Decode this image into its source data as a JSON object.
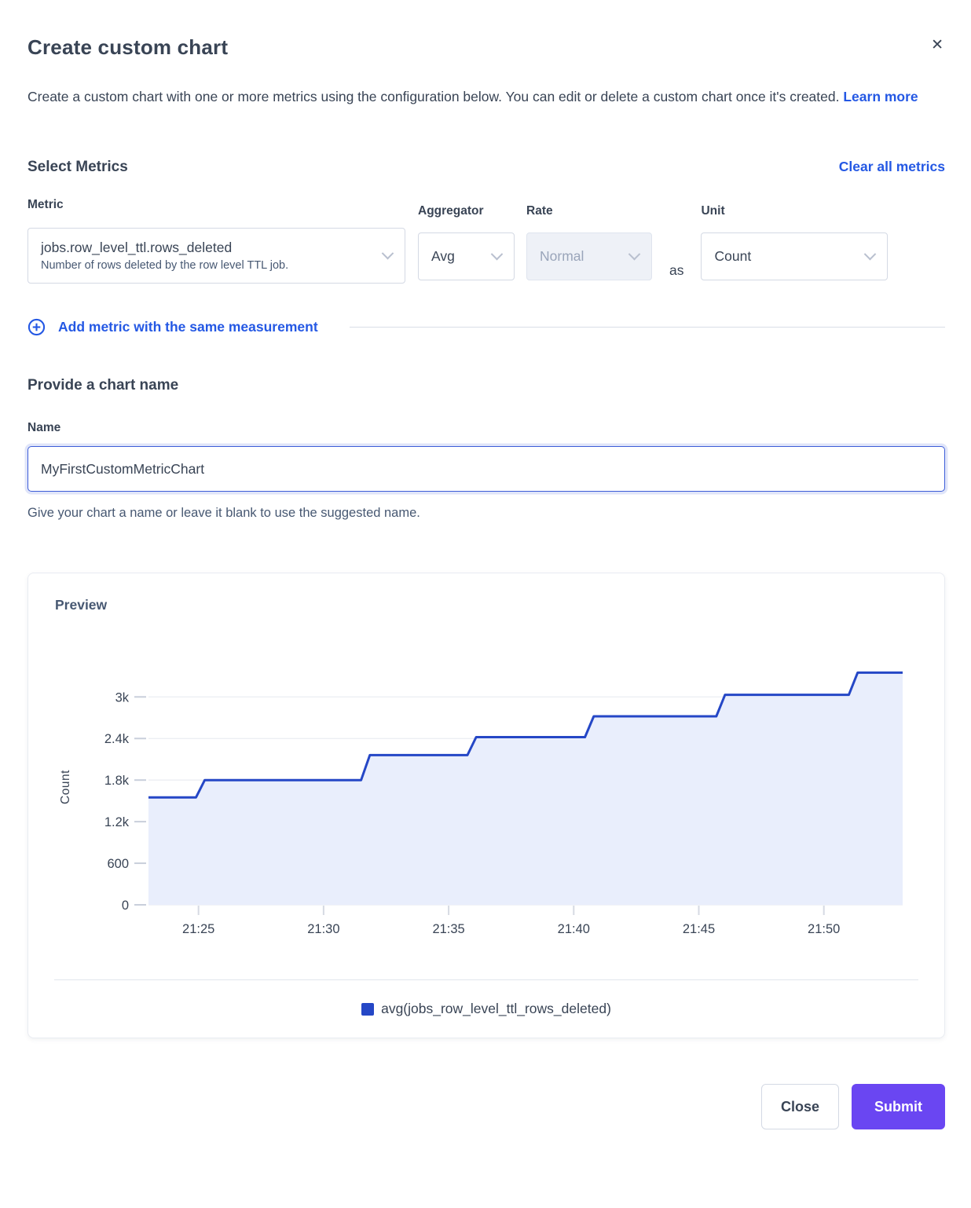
{
  "dialog": {
    "title": "Create custom chart",
    "description": "Create a custom chart with one or more metrics using the configuration below. You can edit or delete a custom chart once it's created.",
    "learn_more_label": "Learn more"
  },
  "icons": {
    "close": "✕"
  },
  "metrics_section": {
    "heading": "Select Metrics",
    "clear_all_label": "Clear all metrics",
    "metric": {
      "label": "Metric",
      "value": "jobs.row_level_ttl.rows_deleted",
      "description": "Number of rows deleted by the row level TTL job."
    },
    "aggregator": {
      "label": "Aggregator",
      "value": "Avg"
    },
    "rate": {
      "label": "Rate",
      "value": "Normal",
      "disabled": true
    },
    "as_label": "as",
    "unit": {
      "label": "Unit",
      "value": "Count"
    },
    "add_metric_label": "Add metric with the same measurement"
  },
  "name_section": {
    "heading": "Provide a chart name",
    "label": "Name",
    "value": "MyFirstCustomMetricChart",
    "helper": "Give your chart a name or leave it blank to use the suggested name."
  },
  "preview": {
    "heading": "Preview",
    "legend_label": "avg(jobs_row_level_ttl_rows_deleted)"
  },
  "footer": {
    "close_label": "Close",
    "submit_label": "Submit"
  },
  "colors": {
    "link_blue": "#2458e4",
    "primary_purple": "#6a46f2",
    "series_line": "#2547c6",
    "series_fill": "#e9eefc",
    "text_dark": "#394455",
    "text_slate": "#475872"
  },
  "chart_data": {
    "type": "area",
    "subtype": "step",
    "title": "Preview",
    "xlabel": "",
    "ylabel": "Count",
    "x_unit": "minutes after 21:00",
    "x_range": [
      23.0,
      53.15
    ],
    "ylim": [
      0,
      3400
    ],
    "grid": true,
    "legend_position": "bottom",
    "x_ticks": [
      {
        "m": 25,
        "label": "21:25"
      },
      {
        "m": 30,
        "label": "21:30"
      },
      {
        "m": 35,
        "label": "21:35"
      },
      {
        "m": 40,
        "label": "21:40"
      },
      {
        "m": 45,
        "label": "21:45"
      },
      {
        "m": 50,
        "label": "21:50"
      }
    ],
    "y_ticks": [
      {
        "v": 0,
        "label": "0"
      },
      {
        "v": 600,
        "label": "600"
      },
      {
        "v": 1200,
        "label": "1.2k"
      },
      {
        "v": 1800,
        "label": "1.8k"
      },
      {
        "v": 2400,
        "label": "2.4k"
      },
      {
        "v": 3000,
        "label": "3k"
      }
    ],
    "series": [
      {
        "name": "avg(jobs_row_level_ttl_rows_deleted)",
        "color": "#2547c6",
        "fill": "#e9eefc",
        "points": [
          [
            23.0,
            1550
          ],
          [
            24.9,
            1550
          ],
          [
            25.25,
            1800
          ],
          [
            31.5,
            1800
          ],
          [
            31.85,
            2160
          ],
          [
            35.75,
            2160
          ],
          [
            36.1,
            2420
          ],
          [
            40.45,
            2420
          ],
          [
            40.8,
            2720
          ],
          [
            45.7,
            2720
          ],
          [
            46.05,
            3030
          ],
          [
            51.0,
            3030
          ],
          [
            51.35,
            3350
          ],
          [
            53.15,
            3350
          ]
        ]
      }
    ]
  }
}
